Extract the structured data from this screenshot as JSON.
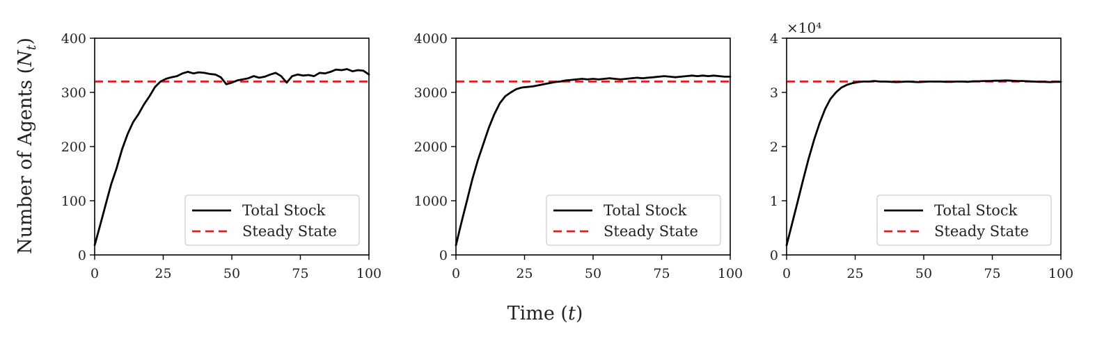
{
  "figure": {
    "xlabel": "Time (t)",
    "ylabel": "Number of Agents (N_t)"
  },
  "chart_data": [
    {
      "type": "line",
      "xlim": [
        0,
        100
      ],
      "ylim": [
        0,
        400
      ],
      "xticks": [
        0,
        25,
        50,
        75,
        100
      ],
      "yticks": [
        0,
        100,
        200,
        300,
        400
      ],
      "ytick_labels": [
        "0",
        "100",
        "200",
        "300",
        "400"
      ],
      "multiplier": "",
      "legend": "lower-right",
      "grid": false,
      "series": [
        {
          "name": "Total Stock",
          "color": "#000000",
          "x": [
            0,
            2,
            4,
            6,
            8,
            10,
            12,
            14,
            16,
            18,
            20,
            22,
            24,
            26,
            28,
            30,
            32,
            34,
            36,
            38,
            40,
            42,
            44,
            46,
            48,
            50,
            52,
            54,
            56,
            58,
            60,
            62,
            64,
            66,
            68,
            70,
            72,
            74,
            76,
            78,
            80,
            82,
            84,
            86,
            88,
            90,
            92,
            94,
            96,
            98,
            100
          ],
          "y": [
            18,
            55,
            93,
            130,
            160,
            195,
            223,
            245,
            260,
            278,
            293,
            310,
            320,
            325,
            328,
            330,
            335,
            338,
            335,
            337,
            336,
            334,
            333,
            328,
            315,
            318,
            322,
            324,
            326,
            330,
            327,
            329,
            333,
            336,
            330,
            318,
            330,
            333,
            331,
            332,
            330,
            336,
            335,
            338,
            342,
            341,
            343,
            339,
            341,
            340,
            333
          ]
        }
      ],
      "steady_state": {
        "name": "Steady State",
        "color": "#e41a1c",
        "value": 320
      }
    },
    {
      "type": "line",
      "xlim": [
        0,
        100
      ],
      "ylim": [
        0,
        4000
      ],
      "xticks": [
        0,
        25,
        50,
        75,
        100
      ],
      "yticks": [
        0,
        1000,
        2000,
        3000,
        4000
      ],
      "ytick_labels": [
        "0",
        "1000",
        "2000",
        "3000",
        "4000"
      ],
      "multiplier": "",
      "legend": "lower-right",
      "grid": false,
      "series": [
        {
          "name": "Total Stock",
          "color": "#000000",
          "x": [
            0,
            2,
            4,
            6,
            8,
            10,
            12,
            14,
            16,
            18,
            20,
            22,
            24,
            26,
            28,
            30,
            32,
            34,
            36,
            38,
            40,
            42,
            44,
            46,
            48,
            50,
            52,
            54,
            56,
            58,
            60,
            62,
            64,
            66,
            68,
            70,
            72,
            74,
            76,
            78,
            80,
            82,
            84,
            86,
            88,
            90,
            92,
            94,
            96,
            98,
            100
          ],
          "y": [
            180,
            600,
            1000,
            1400,
            1750,
            2050,
            2350,
            2600,
            2800,
            2930,
            3000,
            3060,
            3090,
            3100,
            3110,
            3130,
            3150,
            3170,
            3190,
            3200,
            3220,
            3230,
            3240,
            3250,
            3240,
            3250,
            3240,
            3250,
            3260,
            3250,
            3240,
            3250,
            3260,
            3270,
            3260,
            3270,
            3280,
            3290,
            3300,
            3290,
            3280,
            3290,
            3300,
            3310,
            3300,
            3310,
            3300,
            3310,
            3300,
            3290,
            3290
          ]
        }
      ],
      "steady_state": {
        "name": "Steady State",
        "color": "#e41a1c",
        "value": 3200
      }
    },
    {
      "type": "line",
      "xlim": [
        0,
        100
      ],
      "ylim": [
        0,
        40000
      ],
      "xticks": [
        0,
        25,
        50,
        75,
        100
      ],
      "yticks": [
        0,
        10000,
        20000,
        30000,
        40000
      ],
      "ytick_labels": [
        "0",
        "1",
        "2",
        "3",
        "4"
      ],
      "multiplier": "×10⁴",
      "legend": "lower-right",
      "grid": false,
      "series": [
        {
          "name": "Total Stock",
          "color": "#000000",
          "x": [
            0,
            2,
            4,
            6,
            8,
            10,
            12,
            14,
            16,
            18,
            20,
            22,
            24,
            26,
            28,
            30,
            32,
            34,
            36,
            38,
            40,
            42,
            44,
            46,
            48,
            50,
            52,
            54,
            56,
            58,
            60,
            62,
            64,
            66,
            68,
            70,
            72,
            74,
            76,
            78,
            80,
            82,
            84,
            86,
            88,
            90,
            92,
            94,
            96,
            98,
            100
          ],
          "y": [
            1800,
            5800,
            9800,
            13800,
            17700,
            21200,
            24300,
            26900,
            28800,
            30000,
            30900,
            31400,
            31700,
            31900,
            32000,
            32000,
            32100,
            32000,
            32000,
            31950,
            31900,
            31950,
            32000,
            31950,
            31900,
            31950,
            32000,
            32000,
            32000,
            31950,
            31950,
            32000,
            32000,
            31950,
            32050,
            32050,
            32100,
            32100,
            32150,
            32150,
            32200,
            32150,
            32100,
            32100,
            32050,
            32000,
            31950,
            31950,
            31900,
            31950,
            31950
          ]
        }
      ],
      "steady_state": {
        "name": "Steady State",
        "color": "#e41a1c",
        "value": 32000
      }
    }
  ]
}
